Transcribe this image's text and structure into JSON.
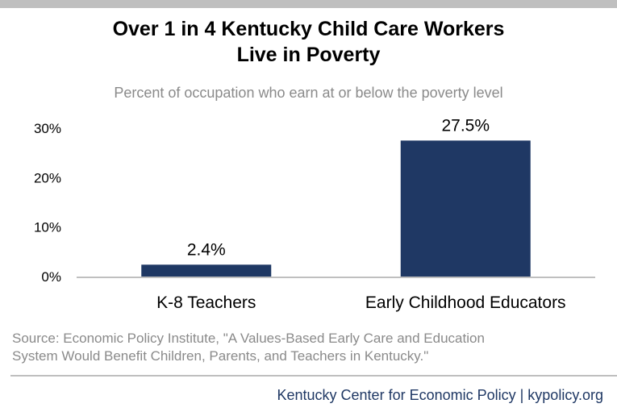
{
  "title_lines": [
    "Over 1 in 4 Kentucky Child Care Workers",
    "Live in Poverty"
  ],
  "subtitle": "Percent of occupation who earn at or below the poverty level",
  "chart_data": {
    "type": "bar",
    "categories": [
      "K-8 Teachers",
      "Early Childhood Educators"
    ],
    "values": [
      2.4,
      27.5
    ],
    "value_labels": [
      "2.4%",
      "27.5%"
    ],
    "ylim": [
      0,
      30
    ],
    "yticks": [
      0,
      10,
      20,
      30
    ],
    "ytick_labels": [
      "0%",
      "10%",
      "20%",
      "30%"
    ],
    "xlabel": "",
    "ylabel": "",
    "grid": false,
    "bar_color": "#1f3864",
    "axis_color": "#bfbfbf"
  },
  "source_lines": [
    "Source: Economic Policy Institute, \"A Values-Based Early Care and Education",
    "System Would Benefit Children, Parents, and Teachers in Kentucky.\""
  ],
  "credit": "Kentucky Center for Economic Policy | kypolicy.org",
  "colors": {
    "top_bar": "#bfbfbf",
    "subtitle_text": "#8a8a8a",
    "credit_text": "#1f3864"
  }
}
